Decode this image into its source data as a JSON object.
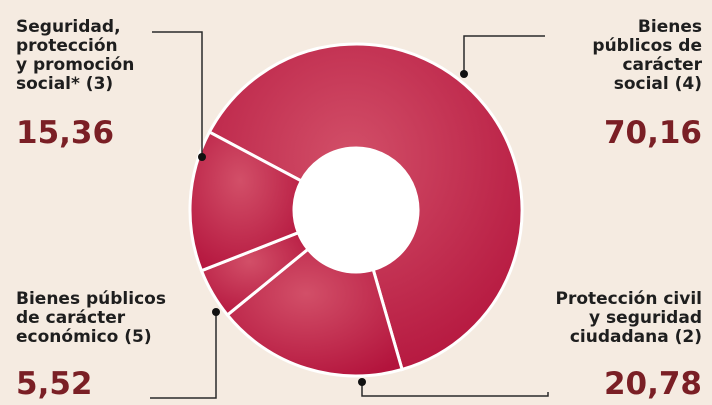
{
  "chart_data": {
    "type": "pie",
    "donut": true,
    "slices": [
      {
        "label": "Bienes\npúblicos de\ncarácter\nsocial (4)",
        "value": 70.16,
        "value_text": "70,16"
      },
      {
        "label": "Protección civil\ny seguridad\nciudadana (2)",
        "value": 20.78,
        "value_text": "20,78"
      },
      {
        "label": "Bienes públicos\nde carácter\neconómico (5)",
        "value": 5.52,
        "value_text": "5,52"
      },
      {
        "label": "Seguridad,\nprotección\ny promoción\nsocial* (3)",
        "value": 15.36,
        "value_text": "15,36"
      }
    ],
    "colors": {
      "background": "#f5ebe1",
      "slice": "#c0304f",
      "value_text": "#7a1f25"
    }
  }
}
